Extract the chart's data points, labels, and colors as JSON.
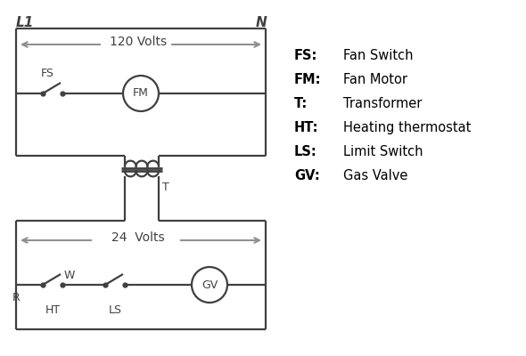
{
  "bg_color": "#ffffff",
  "line_color": "#404040",
  "gray_color": "#909090",
  "legend": [
    [
      "FS:",
      "Fan Switch"
    ],
    [
      "FM:",
      "Fan Motor"
    ],
    [
      "T:",
      "Transformer"
    ],
    [
      "HT:",
      "Heating thermostat"
    ],
    [
      "LS:",
      "Limit Switch"
    ],
    [
      "GV:",
      "Gas Valve"
    ]
  ],
  "L1_label": "L1",
  "N_label": "N",
  "volts120": "120 Volts",
  "volts24": "24  Volts",
  "lw": 1.6,
  "lw_thick": 2.5
}
